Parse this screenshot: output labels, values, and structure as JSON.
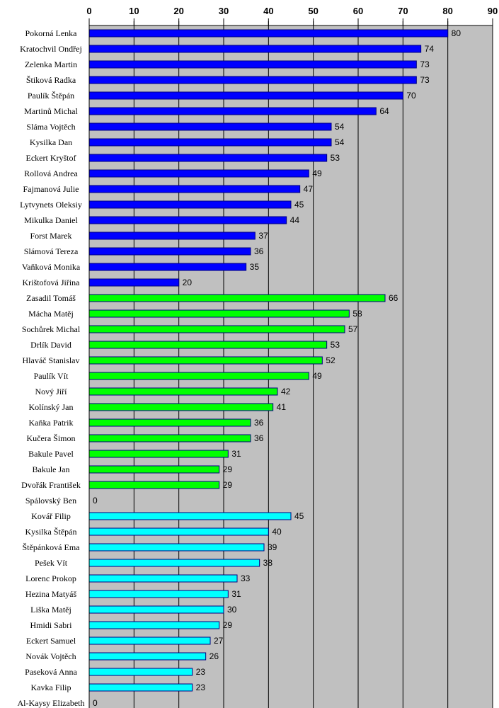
{
  "chart_data": {
    "type": "bar",
    "orientation": "horizontal",
    "title": "",
    "xlabel": "",
    "ylabel": "",
    "xlim": [
      0,
      90
    ],
    "xticks": [
      0,
      10,
      20,
      30,
      40,
      50,
      60,
      70,
      80,
      90
    ],
    "axis_position": "top",
    "grid": true,
    "colors": {
      "group1": "#0000ff",
      "group2": "#00ff00",
      "group3": "#00ffff",
      "plot_bg": "#c0c0c0",
      "bar_border": "#000080"
    },
    "categories": [
      "Pokorná Lenka",
      "Kratochvil Ondřej",
      "Zelenka Martin",
      "Štiková Radka",
      "Paulík Štěpán",
      "Martinů Michal",
      "Sláma Vojtěch",
      "Kysilka Dan",
      "Eckert Kryštof",
      "Rollová Andrea",
      "Fajmanová Julie",
      "Lytvynets Oleksiy",
      "Mikulka Daniel",
      "Forst Marek",
      "Slámová Tereza",
      "Vaňková Monika",
      "Krištofová Jiřina",
      "Zasadil Tomáš",
      "Mácha Matěj",
      "Sochůrek Michal",
      "Drlík David",
      "Hlaváč Stanislav",
      "Paulík Vít",
      "Nový Jiří",
      "Kolínský Jan",
      "Kaňka Patrik",
      "Kučera Šimon",
      "Bakule Pavel",
      "Bakule Jan",
      "Dvořák František",
      "Spálovský Ben",
      "Kovář Filip",
      "Kysilka Štěpán",
      "Štěpánková Ema",
      "Pešek Vít",
      "Lorenc Prokop",
      "Hezina Matyáš",
      "Liška Matěj",
      "Hmidi Sabri",
      "Eckert Samuel",
      "Novák Vojtěch",
      "Paseková Anna",
      "Kavka Filip",
      "Al-Kaysy Elizabeth"
    ],
    "values": [
      80,
      74,
      73,
      73,
      70,
      64,
      54,
      54,
      53,
      49,
      47,
      45,
      44,
      37,
      36,
      35,
      20,
      66,
      58,
      57,
      53,
      52,
      49,
      42,
      41,
      36,
      36,
      31,
      29,
      29,
      0,
      45,
      40,
      39,
      38,
      33,
      31,
      30,
      29,
      27,
      26,
      23,
      23,
      0
    ],
    "groups": [
      1,
      1,
      1,
      1,
      1,
      1,
      1,
      1,
      1,
      1,
      1,
      1,
      1,
      1,
      1,
      1,
      1,
      2,
      2,
      2,
      2,
      2,
      2,
      2,
      2,
      2,
      2,
      2,
      2,
      2,
      2,
      3,
      3,
      3,
      3,
      3,
      3,
      3,
      3,
      3,
      3,
      3,
      3,
      3
    ]
  }
}
